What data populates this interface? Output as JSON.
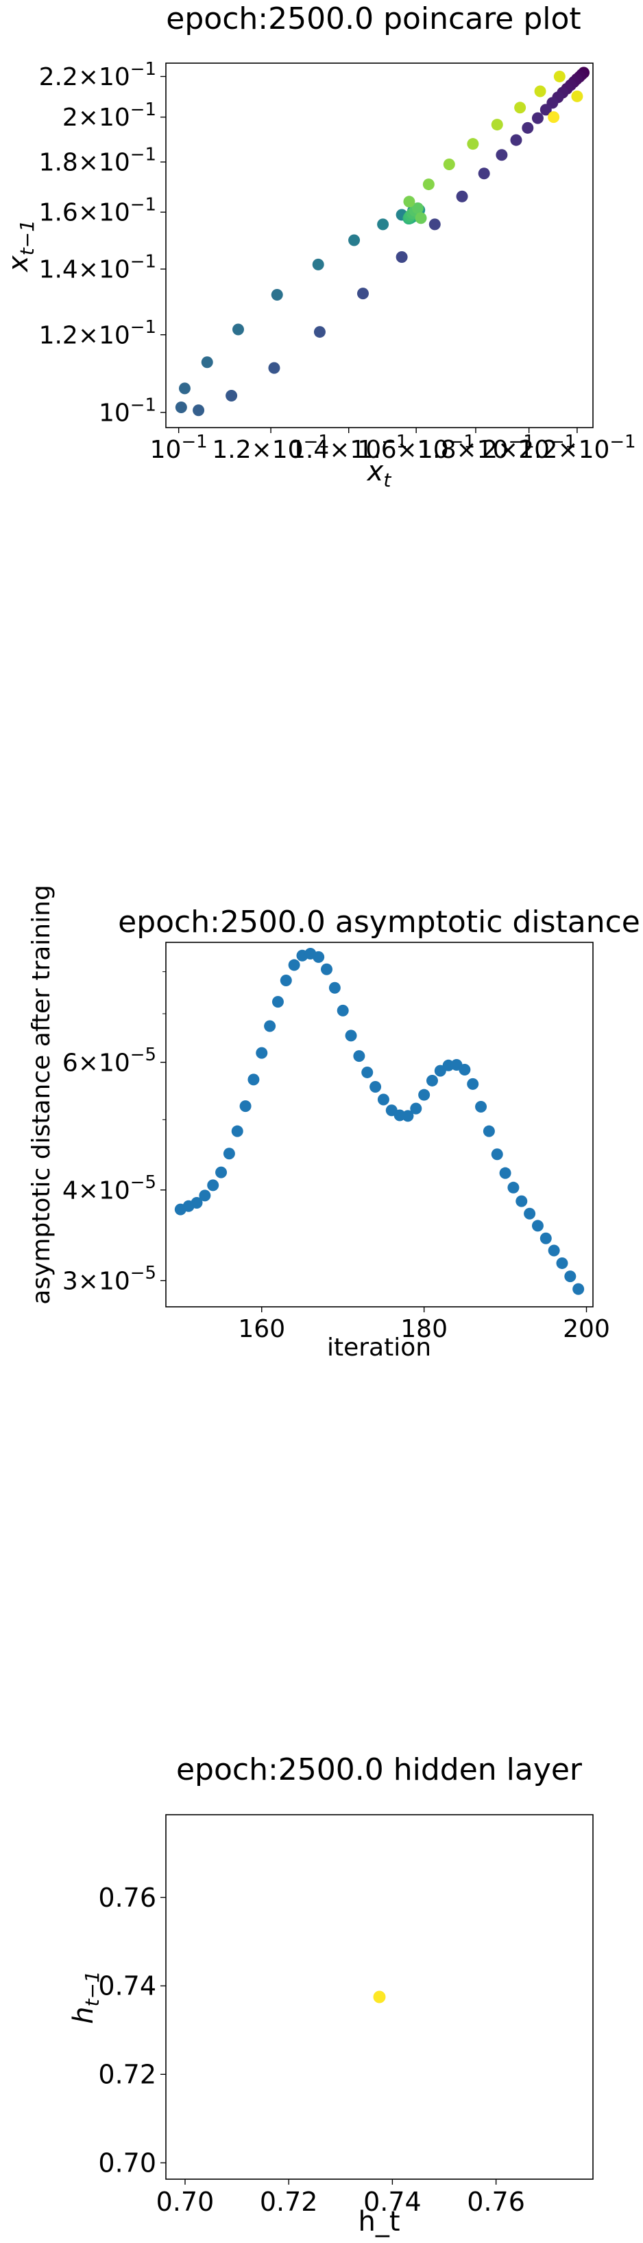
{
  "chart_data": [
    {
      "type": "scatter",
      "title": "epoch:2500.0 poincare plot",
      "xlabel": "x_t",
      "ylabel": "x_{t-1}",
      "scale": "log",
      "xlim": [
        0.0975,
        0.227
      ],
      "ylim": [
        0.0965,
        0.227
      ],
      "grid": false,
      "colormap": "viridis",
      "xticks": [
        {
          "value": 0.1,
          "label": "10^-1"
        },
        {
          "value": 0.12,
          "label": "1.2×10^-1"
        },
        {
          "value": 0.14,
          "label": "1.4×10^-1"
        },
        {
          "value": 0.16,
          "label": "1.6×10^-1"
        },
        {
          "value": 0.18,
          "label": "1.8×10^-1"
        },
        {
          "value": 0.2,
          "label": "2×10^-1"
        },
        {
          "value": 0.22,
          "label": "2.2×10^-1"
        }
      ],
      "yticks": [
        {
          "value": 0.1,
          "label": "10^-1"
        },
        {
          "value": 0.12,
          "label": "1.2×10^-1"
        },
        {
          "value": 0.14,
          "label": "1.4×10^-1"
        },
        {
          "value": 0.16,
          "label": "1.6×10^-1"
        },
        {
          "value": 0.18,
          "label": "1.8×10^-1"
        },
        {
          "value": 0.2,
          "label": "2×10^-1"
        },
        {
          "value": 0.22,
          "label": "2.2×10^-1"
        }
      ],
      "points": [
        {
          "x": 0.2229,
          "y": 0.222,
          "color": "#440154"
        },
        {
          "x": 0.222,
          "y": 0.221,
          "color": "#450559"
        },
        {
          "x": 0.221,
          "y": 0.2198,
          "color": "#46085c"
        },
        {
          "x": 0.2198,
          "y": 0.2186,
          "color": "#470d60"
        },
        {
          "x": 0.2186,
          "y": 0.2172,
          "color": "#471063"
        },
        {
          "x": 0.2172,
          "y": 0.2156,
          "color": "#481467"
        },
        {
          "x": 0.2156,
          "y": 0.2138,
          "color": "#481769"
        },
        {
          "x": 0.2138,
          "y": 0.2118,
          "color": "#481b6d"
        },
        {
          "x": 0.2118,
          "y": 0.2095,
          "color": "#481f70"
        },
        {
          "x": 0.2095,
          "y": 0.2068,
          "color": "#482374"
        },
        {
          "x": 0.2068,
          "y": 0.2035,
          "color": "#482677"
        },
        {
          "x": 0.2035,
          "y": 0.1995,
          "color": "#472a7a"
        },
        {
          "x": 0.1995,
          "y": 0.195,
          "color": "#472e7c"
        },
        {
          "x": 0.195,
          "y": 0.1895,
          "color": "#46327e"
        },
        {
          "x": 0.1895,
          "y": 0.183,
          "color": "#453781"
        },
        {
          "x": 0.183,
          "y": 0.1752,
          "color": "#443a83"
        },
        {
          "x": 0.1752,
          "y": 0.166,
          "color": "#433e85"
        },
        {
          "x": 0.166,
          "y": 0.1555,
          "color": "#414487"
        },
        {
          "x": 0.1555,
          "y": 0.144,
          "color": "#3f4889"
        },
        {
          "x": 0.144,
          "y": 0.1322,
          "color": "#3d4d8a"
        },
        {
          "x": 0.1322,
          "y": 0.1208,
          "color": "#3b528b"
        },
        {
          "x": 0.1208,
          "y": 0.111,
          "color": "#39568c"
        },
        {
          "x": 0.111,
          "y": 0.104,
          "color": "#37598c"
        },
        {
          "x": 0.104,
          "y": 0.1005,
          "color": "#355f8d"
        },
        {
          "x": 0.1005,
          "y": 0.1012,
          "color": "#33638d"
        },
        {
          "x": 0.1012,
          "y": 0.1058,
          "color": "#31688e"
        },
        {
          "x": 0.1058,
          "y": 0.1125,
          "color": "#2f6c8e"
        },
        {
          "x": 0.1125,
          "y": 0.1215,
          "color": "#2d708e"
        },
        {
          "x": 0.1215,
          "y": 0.1318,
          "color": "#2c728e"
        },
        {
          "x": 0.1318,
          "y": 0.1415,
          "color": "#2a788e"
        },
        {
          "x": 0.1415,
          "y": 0.1498,
          "color": "#287c8e"
        },
        {
          "x": 0.1498,
          "y": 0.1555,
          "color": "#26828e"
        },
        {
          "x": 0.1555,
          "y": 0.159,
          "color": "#25858e"
        },
        {
          "x": 0.159,
          "y": 0.1605,
          "color": "#23898e"
        },
        {
          "x": 0.1605,
          "y": 0.161,
          "color": "#218e8d"
        },
        {
          "x": 0.161,
          "y": 0.1608,
          "color": "#20928c"
        },
        {
          "x": 0.1608,
          "y": 0.1602,
          "color": "#1f968b"
        },
        {
          "x": 0.1602,
          "y": 0.1595,
          "color": "#1f9a8a"
        },
        {
          "x": 0.1595,
          "y": 0.1588,
          "color": "#1fa088"
        },
        {
          "x": 0.1588,
          "y": 0.1582,
          "color": "#21a585"
        },
        {
          "x": 0.1582,
          "y": 0.1578,
          "color": "#24aa83"
        },
        {
          "x": 0.1578,
          "y": 0.1576,
          "color": "#28ae80"
        },
        {
          "x": 0.1576,
          "y": 0.1576,
          "color": "#2db27d"
        },
        {
          "x": 0.1576,
          "y": 0.1578,
          "color": "#32b67a"
        },
        {
          "x": 0.1578,
          "y": 0.1582,
          "color": "#3bbb75"
        },
        {
          "x": 0.1582,
          "y": 0.1588,
          "color": "#42be71"
        },
        {
          "x": 0.1588,
          "y": 0.1596,
          "color": "#4ac16d"
        },
        {
          "x": 0.1596,
          "y": 0.1605,
          "color": "#54c568"
        },
        {
          "x": 0.1605,
          "y": 0.1615,
          "color": "#5ec962"
        },
        {
          "x": 0.1615,
          "y": 0.1578,
          "color": "#6ccd5a"
        },
        {
          "x": 0.1578,
          "y": 0.164,
          "color": "#7ad151"
        },
        {
          "x": 0.164,
          "y": 0.1708,
          "color": "#86d549"
        },
        {
          "x": 0.1708,
          "y": 0.179,
          "color": "#95d840"
        },
        {
          "x": 0.179,
          "y": 0.1878,
          "color": "#a2da37"
        },
        {
          "x": 0.1878,
          "y": 0.1965,
          "color": "#b0dd2f"
        },
        {
          "x": 0.1965,
          "y": 0.2045,
          "color": "#c2df23"
        },
        {
          "x": 0.2045,
          "y": 0.2125,
          "color": "#d0e11c"
        },
        {
          "x": 0.2125,
          "y": 0.22,
          "color": "#dde318"
        },
        {
          "x": 0.22,
          "y": 0.21,
          "color": "#ece51b"
        },
        {
          "x": 0.21,
          "y": 0.2,
          "color": "#fde725"
        }
      ]
    },
    {
      "type": "scatter",
      "title": "epoch:2500.0 asymptotic distance",
      "xlabel": "iteration",
      "ylabel": "asymptotic distance after training",
      "yscale": "log",
      "xlim": [
        148.2,
        200.8
      ],
      "ylim": [
        2.76e-05,
        8.78e-05
      ],
      "grid": false,
      "color": "#1f77b4",
      "xticks": [
        {
          "value": 160,
          "label": "160"
        },
        {
          "value": 180,
          "label": "180"
        },
        {
          "value": 200,
          "label": "200"
        }
      ],
      "yticks": [
        {
          "value": 3e-05,
          "label": "3×10^-5"
        },
        {
          "value": 4e-05,
          "label": "4×10^-5"
        },
        {
          "value": 6e-05,
          "label": "6×10^-5"
        }
      ],
      "yminor": [
        5e-05,
        7e-05,
        8e-05
      ],
      "x": [
        150,
        151,
        152,
        153,
        154,
        155,
        156,
        157,
        158,
        159,
        160,
        161,
        162,
        163,
        164,
        165,
        166,
        167,
        168,
        169,
        170,
        171,
        172,
        173,
        174,
        175,
        176,
        177,
        178,
        179,
        180,
        181,
        182,
        183,
        184,
        185,
        186,
        187,
        188,
        189,
        190,
        191,
        192,
        193,
        194,
        195,
        196,
        197,
        198,
        199
      ],
      "y": [
        3.76e-05,
        3.8e-05,
        3.84e-05,
        3.93e-05,
        4.06e-05,
        4.23e-05,
        4.49e-05,
        4.82e-05,
        5.22e-05,
        5.68e-05,
        6.18e-05,
        6.73e-05,
        7.27e-05,
        7.78e-05,
        8.17e-05,
        8.42e-05,
        8.47e-05,
        8.38e-05,
        8.06e-05,
        7.6e-05,
        7.07e-05,
        6.53e-05,
        6.12e-05,
        5.81e-05,
        5.55e-05,
        5.33e-05,
        5.15e-05,
        5.07e-05,
        5.06e-05,
        5.18e-05,
        5.41e-05,
        5.66e-05,
        5.84e-05,
        5.94e-05,
        5.95e-05,
        5.86e-05,
        5.6e-05,
        5.21e-05,
        4.82e-05,
        4.48e-05,
        4.22e-05,
        4.03e-05,
        3.86e-05,
        3.71e-05,
        3.57e-05,
        3.43e-05,
        3.3e-05,
        3.17e-05,
        3.04e-05,
        2.92e-05
      ]
    },
    {
      "type": "scatter",
      "title": "epoch:2500.0 hidden layer",
      "xlabel": "h_t",
      "ylabel": "h_{t-1}",
      "xlim": [
        0.6963,
        0.7787
      ],
      "ylim": [
        0.6963,
        0.7787
      ],
      "grid": false,
      "xticks": [
        {
          "value": 0.7,
          "label": "0.70"
        },
        {
          "value": 0.72,
          "label": "0.72"
        },
        {
          "value": 0.74,
          "label": "0.74"
        },
        {
          "value": 0.76,
          "label": "0.76"
        }
      ],
      "yticks": [
        {
          "value": 0.7,
          "label": "0.70"
        },
        {
          "value": 0.72,
          "label": "0.72"
        },
        {
          "value": 0.74,
          "label": "0.74"
        },
        {
          "value": 0.76,
          "label": "0.76"
        }
      ],
      "points": [
        {
          "x": 0.7375,
          "y": 0.7375,
          "color": "#fde725"
        }
      ]
    }
  ]
}
